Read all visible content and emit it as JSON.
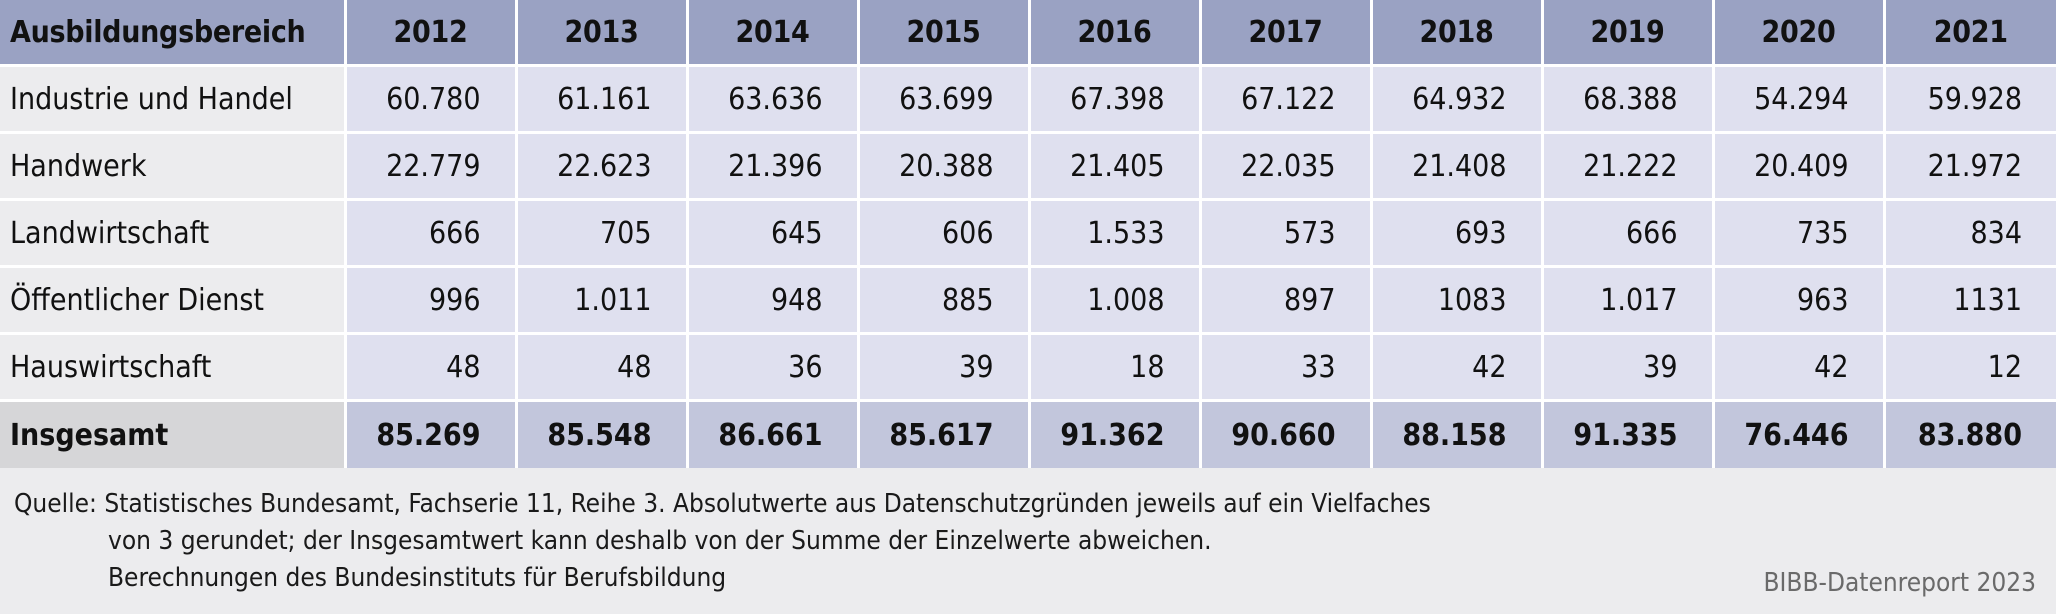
{
  "table": {
    "header_label": "Ausbildungsbereich",
    "years": [
      "2012",
      "2013",
      "2014",
      "2015",
      "2016",
      "2017",
      "2018",
      "2019",
      "2020",
      "2021"
    ],
    "rows": [
      {
        "label": "Industrie und Handel",
        "values": [
          "60.780",
          "61.161",
          "63.636",
          "63.699",
          "67.398",
          "67.122",
          "64.932",
          "68.388",
          "54.294",
          "59.928"
        ]
      },
      {
        "label": "Handwerk",
        "values": [
          "22.779",
          "22.623",
          "21.396",
          "20.388",
          "21.405",
          "22.035",
          "21.408",
          "21.222",
          "20.409",
          "21.972"
        ]
      },
      {
        "label": "Landwirtschaft",
        "values": [
          "666",
          "705",
          "645",
          "606",
          "1.533",
          "573",
          "693",
          "666",
          "735",
          "834"
        ]
      },
      {
        "label": "Öffentlicher Dienst",
        "values": [
          "996",
          "1.011",
          "948",
          "885",
          "1.008",
          "897",
          "1083",
          "1.017",
          "963",
          "1131"
        ]
      },
      {
        "label": "Hauswirtschaft",
        "values": [
          "48",
          "48",
          "36",
          "39",
          "18",
          "33",
          "42",
          "39",
          "42",
          "12"
        ]
      }
    ],
    "total": {
      "label": "Insgesamt",
      "values": [
        "85.269",
        "85.548",
        "86.661",
        "85.617",
        "91.362",
        "90.660",
        "88.158",
        "91.335",
        "76.446",
        "83.880"
      ]
    }
  },
  "source": {
    "line1": "Quelle: Statistisches Bundesamt, Fachserie 11, Reihe 3. Absolutwerte aus Datenschutzgründen jeweils auf ein Vielfaches",
    "line2": "von 3 gerundet; der Insgesamtwert kann deshalb von der Summe der Einzelwerte abweichen.",
    "line3": "Berechnungen des Bundesinstituts für Berufsbildung"
  },
  "brand": "BIBB-Datenreport 2023"
}
